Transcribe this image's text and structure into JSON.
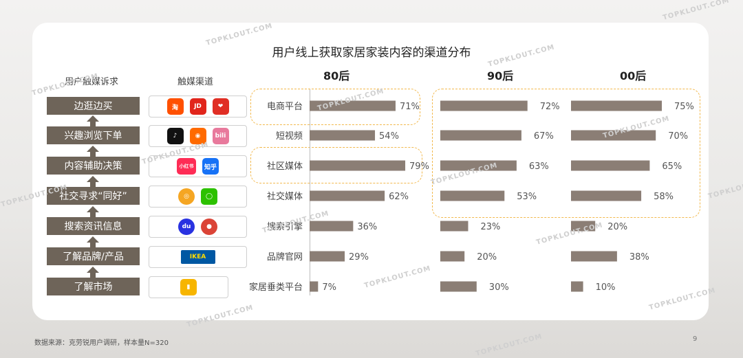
{
  "title": "用户线上获取家居家装内容的渠道分布",
  "col_headers": {
    "needs": "用户触媒诉求",
    "channels": "触媒渠道"
  },
  "generations": [
    "80后",
    "90后",
    "00后"
  ],
  "needs": [
    "边逛边买",
    "兴趣浏览下单",
    "内容辅助决策",
    "社交寻求“同好”",
    "搜索资讯信息",
    "了解品牌/产品",
    "了解市场"
  ],
  "channel_icons": [
    [
      {
        "name": "taobao-icon",
        "text": "淘",
        "color": "#ff5000"
      },
      {
        "name": "jd-icon",
        "text": "JD",
        "color": "#e1251b"
      },
      {
        "name": "pinduoduo-icon",
        "text": "❤",
        "color": "#e02e24"
      }
    ],
    [
      {
        "name": "douyin-icon",
        "text": "♪",
        "color": "#111111"
      },
      {
        "name": "kuaishou-icon",
        "text": "◉",
        "color": "#ff6a00"
      },
      {
        "name": "bilibili-icon",
        "text": "bili",
        "color": "#e8799c"
      }
    ],
    [
      {
        "name": "xiaohongshu-icon",
        "text": "小红书",
        "color": "#fe2c55"
      },
      {
        "name": "zhihu-icon",
        "text": "知乎",
        "color": "#1772f6"
      }
    ],
    [
      {
        "name": "weibo-icon",
        "text": "◎",
        "color": "#f5a623"
      },
      {
        "name": "wechat-icon",
        "text": "◯",
        "color": "#2dc100"
      }
    ],
    [
      {
        "name": "baidu-icon",
        "text": "du",
        "color": "#2932e1"
      },
      {
        "name": "chrome-icon",
        "text": "●",
        "color": "#db4437"
      }
    ],
    [
      {
        "name": "ikea-icon",
        "text": "IKEA",
        "color": "#0058a3"
      }
    ],
    [
      {
        "name": "pconline-icon",
        "text": "▮",
        "color": "#f7b500"
      }
    ]
  ],
  "chart_data": {
    "type": "bar",
    "title": "用户线上获取家居家装内容的渠道分布",
    "categories": [
      "电商平台",
      "短视频",
      "社区媒体",
      "社交媒体",
      "搜索引擎",
      "品牌官网",
      "家居垂类平台"
    ],
    "series": [
      {
        "name": "80后",
        "values": [
          71,
          54,
          79,
          62,
          36,
          29,
          7
        ]
      },
      {
        "name": "90后",
        "values": [
          72,
          67,
          63,
          53,
          23,
          20,
          30
        ]
      },
      {
        "name": "00后",
        "values": [
          75,
          70,
          65,
          58,
          20,
          38,
          10
        ]
      }
    ],
    "value_suffix": "%",
    "bar_color": "#8b7e75",
    "highlight_color": "#f2b84b"
  },
  "footer": "数据来源：克劳锐用户调研，样本量N=320",
  "page_number": "9",
  "watermark": "TOPKLOUT.COM"
}
